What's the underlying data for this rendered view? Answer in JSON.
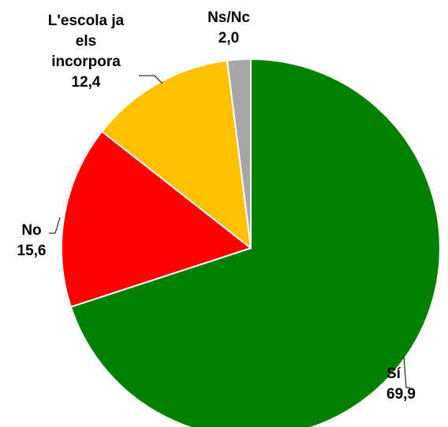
{
  "chart_data": {
    "type": "pie",
    "categories": [
      "Sí",
      "No",
      "L'escola ja els incorpora",
      "Ns/Nc"
    ],
    "values": [
      69.9,
      15.6,
      12.4,
      2.0
    ],
    "value_labels": [
      "69,9",
      "15,6",
      "12,4",
      "2,0"
    ],
    "colors": [
      "#008000",
      "#ff0000",
      "#ffc000",
      "#a6a6a6"
    ],
    "start_angle": 0,
    "direction": "clockwise"
  }
}
